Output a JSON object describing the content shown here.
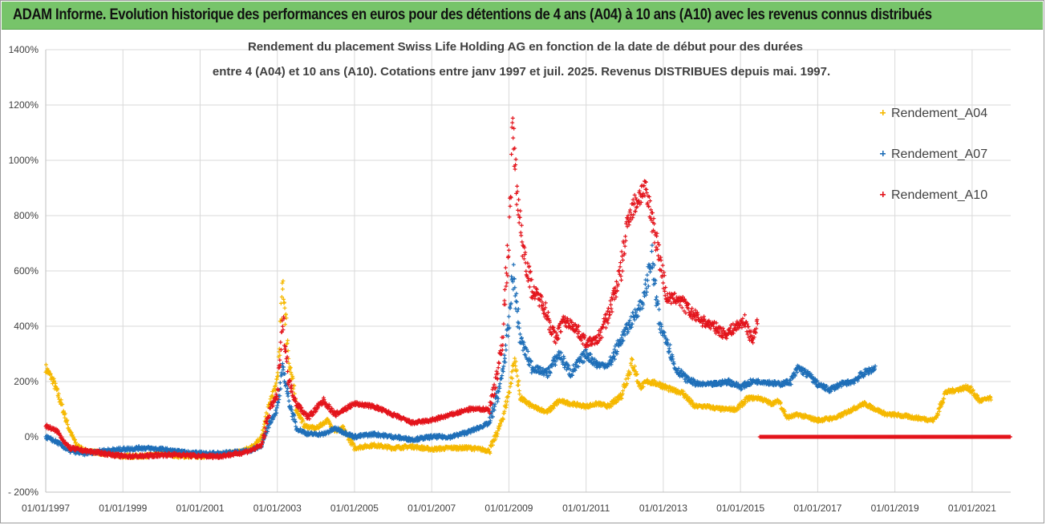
{
  "header": {
    "title": "ADAM Informe. Evolution historique des performances en euros pour des détentions de 4 ans (A04) à 10 ans (A10) avec les revenus connus distribués"
  },
  "chart_data": {
    "type": "scatter",
    "subtitle_line1": "Rendement du placement Swiss Life Holding AG en fonction de la date de début pour des durées",
    "subtitle_line2": "entre 4 (A04) et 10 ans (A10).  Cotations entre janv 1997 et juil. 2025. Revenus DISTRIBUES depuis mai. 1997.",
    "xlabel": "",
    "ylabel": "",
    "ylim": [
      -200,
      1400
    ],
    "xlim": [
      "1997-01-01",
      "2022-01-01"
    ],
    "grid": true,
    "legend_position": "right",
    "y_ticks": [
      "1400%",
      "1200%",
      "1000%",
      "800%",
      "600%",
      "400%",
      "200%",
      "0%",
      "- 200%"
    ],
    "y_tick_values": [
      1400,
      1200,
      1000,
      800,
      600,
      400,
      200,
      0,
      -200
    ],
    "x_ticks": [
      "01/01/1997",
      "01/01/1999",
      "01/01/2001",
      "01/01/2003",
      "01/01/2005",
      "01/01/2007",
      "01/01/2009",
      "01/01/2011",
      "01/01/2013",
      "01/01/2015",
      "01/01/2017",
      "01/01/2019",
      "01/01/2021"
    ],
    "x_tick_years": [
      1997,
      1999,
      2001,
      2003,
      2005,
      2007,
      2009,
      2011,
      2013,
      2015,
      2017,
      2019,
      2021
    ],
    "series": [
      {
        "name": "Rendement_A04",
        "color": "#f5b800",
        "x": [
          1997.0,
          1997.2,
          1997.4,
          1997.6,
          1997.8,
          1998.0,
          1998.5,
          1999.0,
          1999.5,
          2000.0,
          2000.5,
          2001.0,
          2001.5,
          2002.0,
          2002.3,
          2002.6,
          2002.8,
          2003.0,
          2003.15,
          2003.3,
          2003.5,
          2003.7,
          2004.0,
          2004.3,
          2004.5,
          2004.7,
          2005.0,
          2005.5,
          2006.0,
          2006.5,
          2007.0,
          2007.5,
          2008.0,
          2008.5,
          2008.8,
          2009.0,
          2009.15,
          2009.3,
          2009.6,
          2010.0,
          2010.3,
          2010.6,
          2011.0,
          2011.3,
          2011.6,
          2011.9,
          2012.2,
          2012.4,
          2012.6,
          2012.9,
          2013.2,
          2013.5,
          2013.8,
          2014.1,
          2014.5,
          2014.9,
          2015.2,
          2015.5,
          2015.8,
          2016.0,
          2016.2,
          2016.5,
          2017.0,
          2017.5,
          2017.9,
          2018.2,
          2018.5,
          2018.8,
          2019.0,
          2019.5,
          2020.0,
          2020.1,
          2020.3,
          2020.6,
          2020.9,
          2021.2,
          2021.5
        ],
        "y": [
          250,
          200,
          120,
          30,
          -30,
          -50,
          -60,
          -70,
          -70,
          -60,
          -70,
          -70,
          -65,
          -55,
          -40,
          0,
          120,
          200,
          550,
          280,
          100,
          40,
          30,
          60,
          20,
          30,
          -40,
          -30,
          -40,
          -35,
          -45,
          -40,
          -40,
          -50,
          50,
          160,
          280,
          140,
          110,
          90,
          130,
          120,
          110,
          120,
          110,
          150,
          270,
          180,
          200,
          190,
          170,
          160,
          110,
          110,
          100,
          100,
          140,
          140,
          120,
          130,
          70,
          80,
          60,
          70,
          100,
          120,
          100,
          80,
          80,
          70,
          60,
          80,
          160,
          170,
          180,
          130,
          140
        ]
      },
      {
        "name": "Rendement_A07",
        "color": "#1f6fb8",
        "x": [
          1997.0,
          1997.3,
          1997.6,
          1998.0,
          1998.5,
          1999.0,
          1999.5,
          2000.0,
          2000.5,
          2001.0,
          2001.5,
          2002.0,
          2002.3,
          2002.6,
          2002.8,
          2003.0,
          2003.15,
          2003.3,
          2003.5,
          2003.8,
          2004.2,
          2004.5,
          2005.0,
          2005.5,
          2006.0,
          2006.5,
          2007.0,
          2007.5,
          2008.0,
          2008.5,
          2008.8,
          2009.0,
          2009.1,
          2009.3,
          2009.6,
          2010.0,
          2010.3,
          2010.6,
          2011.0,
          2011.3,
          2011.6,
          2011.9,
          2012.1,
          2012.3,
          2012.5,
          2012.7,
          2012.9,
          2013.1,
          2013.3,
          2013.6,
          2013.9,
          2014.3,
          2014.7,
          2015.0,
          2015.3,
          2015.6,
          2016.0,
          2016.3,
          2016.5,
          2016.8,
          2017.0,
          2017.3,
          2017.6,
          2017.9,
          2018.2,
          2018.5
        ],
        "y": [
          0,
          -20,
          -50,
          -60,
          -50,
          -45,
          -40,
          -45,
          -55,
          -60,
          -60,
          -55,
          -50,
          -30,
          50,
          100,
          250,
          130,
          30,
          10,
          10,
          30,
          0,
          10,
          0,
          -10,
          0,
          0,
          20,
          50,
          200,
          400,
          600,
          350,
          250,
          230,
          300,
          230,
          300,
          260,
          260,
          350,
          400,
          450,
          500,
          650,
          400,
          350,
          250,
          210,
          190,
          190,
          200,
          180,
          200,
          200,
          190,
          200,
          250,
          220,
          190,
          170,
          190,
          200,
          230,
          250
        ]
      },
      {
        "name": "Rendement_A10",
        "color": "#e3141c",
        "x": [
          1997.0,
          1997.3,
          1997.6,
          1998.0,
          1998.5,
          1999.0,
          1999.5,
          2000.0,
          2000.5,
          2001.0,
          2001.5,
          2002.0,
          2002.3,
          2002.6,
          2002.8,
          2003.0,
          2003.15,
          2003.3,
          2003.5,
          2003.8,
          2004.2,
          2004.5,
          2005.0,
          2005.5,
          2006.0,
          2006.5,
          2007.0,
          2007.5,
          2008.0,
          2008.5,
          2008.8,
          2009.0,
          2009.1,
          2009.2,
          2009.35,
          2009.6,
          2009.9,
          2010.2,
          2010.4,
          2010.7,
          2011.0,
          2011.3,
          2011.6,
          2011.9,
          2012.1,
          2012.3,
          2012.5,
          2012.7,
          2012.9,
          2013.1,
          2013.4,
          2013.7,
          2014.0,
          2014.3,
          2014.6,
          2014.9,
          2015.1,
          2015.3,
          2015.45
        ],
        "y": [
          40,
          20,
          -40,
          -50,
          -60,
          -70,
          -70,
          -65,
          -65,
          -70,
          -70,
          -60,
          -50,
          -30,
          100,
          150,
          420,
          200,
          120,
          70,
          130,
          80,
          120,
          110,
          80,
          50,
          60,
          80,
          100,
          100,
          300,
          720,
          1120,
          900,
          700,
          530,
          480,
          350,
          420,
          400,
          340,
          350,
          450,
          600,
          800,
          850,
          900,
          800,
          650,
          500,
          500,
          450,
          420,
          400,
          370,
          400,
          420,
          350,
          420
        ]
      },
      {
        "name": "",
        "color": "#e3141c",
        "x": [
          2015.5,
          2022.0
        ],
        "y": [
          0,
          0
        ]
      }
    ]
  }
}
